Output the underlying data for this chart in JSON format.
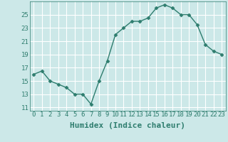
{
  "x": [
    0,
    1,
    2,
    3,
    4,
    5,
    6,
    7,
    8,
    9,
    10,
    11,
    12,
    13,
    14,
    15,
    16,
    17,
    18,
    19,
    20,
    21,
    22,
    23
  ],
  "y": [
    16,
    16.5,
    15,
    14.5,
    14,
    13,
    13,
    11.5,
    15,
    18,
    22,
    23,
    24,
    24,
    24.5,
    26,
    26.5,
    26,
    25,
    25,
    23.5,
    20.5,
    19.5,
    19
  ],
  "xlabel": "Humidex (Indice chaleur)",
  "xlim": [
    -0.5,
    23.5
  ],
  "ylim": [
    10.5,
    27
  ],
  "yticks": [
    11,
    13,
    15,
    17,
    19,
    21,
    23,
    25
  ],
  "xticks": [
    0,
    1,
    2,
    3,
    4,
    5,
    6,
    7,
    8,
    9,
    10,
    11,
    12,
    13,
    14,
    15,
    16,
    17,
    18,
    19,
    20,
    21,
    22,
    23
  ],
  "line_color": "#2e7d6e",
  "marker": "D",
  "marker_size": 2.5,
  "bg_color": "#cce8e8",
  "grid_color": "#b0d8d8",
  "line_width": 1.0,
  "xlabel_fontsize": 8,
  "tick_fontsize": 6.5,
  "label_color": "#2e7d6e"
}
